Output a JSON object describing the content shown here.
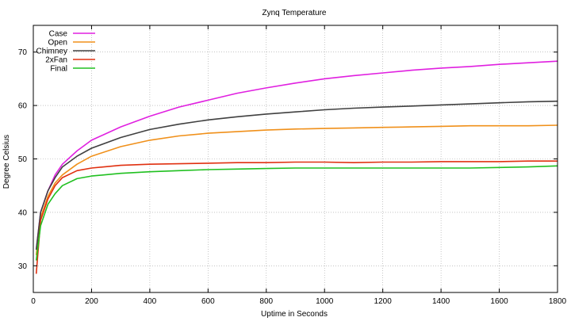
{
  "chart_data": {
    "type": "line",
    "title": "Zynq Temperature",
    "xlabel": "Uptime in Seconds",
    "ylabel": "Degree Celsius",
    "xlim": [
      0,
      1800
    ],
    "ylim": [
      25,
      75
    ],
    "xticks": [
      0,
      200,
      400,
      600,
      800,
      1000,
      1200,
      1400,
      1600,
      1800
    ],
    "yticks": [
      30,
      40,
      50,
      60,
      70
    ],
    "grid": true,
    "legend_position": "top-left",
    "series": [
      {
        "name": "Case",
        "color": "#e020e0",
        "x": [
          10,
          25,
          50,
          75,
          100,
          150,
          200,
          300,
          400,
          500,
          600,
          700,
          800,
          900,
          1000,
          1100,
          1200,
          1300,
          1400,
          1500,
          1600,
          1700,
          1800
        ],
        "y": [
          33,
          40,
          44,
          47,
          49,
          51.5,
          53.5,
          56,
          58,
          59.7,
          61,
          62.3,
          63.3,
          64.2,
          65,
          65.6,
          66.1,
          66.6,
          67,
          67.3,
          67.7,
          68,
          68.3
        ]
      },
      {
        "name": "Open",
        "color": "#f0901a",
        "x": [
          10,
          25,
          50,
          75,
          100,
          150,
          200,
          300,
          400,
          500,
          600,
          700,
          800,
          900,
          1000,
          1100,
          1200,
          1300,
          1400,
          1500,
          1600,
          1700,
          1800
        ],
        "y": [
          32,
          39,
          43,
          45.5,
          47,
          49,
          50.5,
          52.3,
          53.5,
          54.3,
          54.8,
          55.1,
          55.4,
          55.6,
          55.7,
          55.8,
          55.9,
          56,
          56.1,
          56.2,
          56.2,
          56.2,
          56.3
        ]
      },
      {
        "name": "Chimney",
        "color": "#404040",
        "x": [
          10,
          25,
          50,
          75,
          100,
          150,
          200,
          300,
          400,
          500,
          600,
          700,
          800,
          900,
          1000,
          1100,
          1200,
          1300,
          1400,
          1500,
          1600,
          1700,
          1800
        ],
        "y": [
          33,
          40,
          44,
          46.5,
          48.5,
          50.5,
          52,
          54,
          55.5,
          56.5,
          57.3,
          57.9,
          58.4,
          58.8,
          59.2,
          59.5,
          59.7,
          59.9,
          60.1,
          60.3,
          60.5,
          60.7,
          60.8
        ]
      },
      {
        "name": "2xFan",
        "color": "#e03010",
        "x": [
          10,
          25,
          50,
          75,
          100,
          150,
          200,
          300,
          400,
          500,
          600,
          700,
          800,
          900,
          1000,
          1100,
          1200,
          1300,
          1400,
          1500,
          1600,
          1700,
          1800
        ],
        "y": [
          28.5,
          38.5,
          42.5,
          45,
          46.5,
          47.8,
          48.3,
          48.8,
          49,
          49.1,
          49.2,
          49.3,
          49.3,
          49.4,
          49.4,
          49.3,
          49.4,
          49.4,
          49.5,
          49.5,
          49.5,
          49.6,
          49.6
        ]
      },
      {
        "name": "Final",
        "color": "#20c020",
        "x": [
          10,
          25,
          50,
          75,
          100,
          150,
          200,
          300,
          400,
          500,
          600,
          700,
          800,
          900,
          1000,
          1100,
          1200,
          1300,
          1400,
          1500,
          1600,
          1700,
          1800
        ],
        "y": [
          31,
          37.5,
          41.5,
          43.5,
          45,
          46.3,
          46.8,
          47.3,
          47.6,
          47.8,
          48,
          48.1,
          48.2,
          48.3,
          48.3,
          48.3,
          48.3,
          48.3,
          48.3,
          48.3,
          48.4,
          48.5,
          48.7
        ]
      }
    ]
  }
}
